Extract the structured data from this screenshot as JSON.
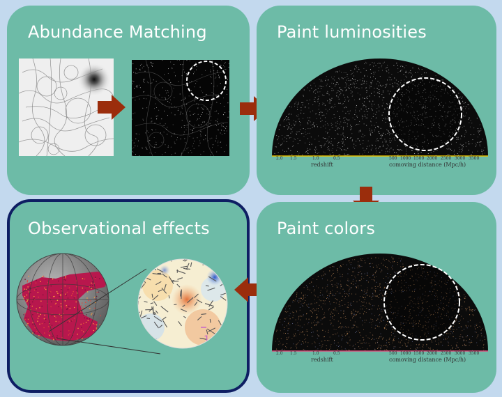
{
  "panels": {
    "abundance": {
      "title": "Abundance Matching"
    },
    "luminosities": {
      "title": "Paint luminosities"
    },
    "colors": {
      "title": "Paint colors"
    },
    "observational": {
      "title": "Observational effects"
    }
  },
  "axes": {
    "redshift_label": "redshift",
    "distance_label": "comoving distance (Mpc/h)",
    "redshift_ticks": [
      "2.0",
      "1.5",
      "1.0",
      "0.5"
    ],
    "distance_ticks": [
      "500",
      "1000",
      "1500",
      "2000",
      "2500",
      "3000",
      "3500"
    ]
  },
  "annotations": {
    "obs_number": "1"
  },
  "colors": {
    "background": "#c3d9ee",
    "panel": "#6dbba7",
    "panel_selected_border": "#0e1e63",
    "arrow": "#9b2d0c",
    "title": "#ffffff"
  }
}
